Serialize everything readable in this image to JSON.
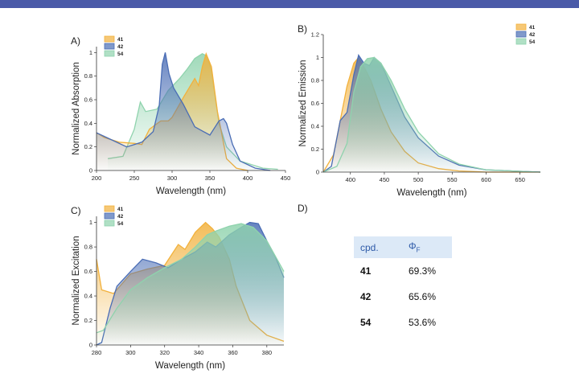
{
  "colors": {
    "41": "#f2b13c",
    "42": "#4a6db5",
    "54": "#8fd3ad",
    "bar": "#4a5aa8"
  },
  "chart_data": [
    {
      "panel": "A)",
      "type": "area",
      "title": "",
      "xlabel": "Wavelength (nm)",
      "ylabel": "Normalized Absorption",
      "xlim": [
        200,
        450
      ],
      "ylim": [
        0,
        1.05
      ],
      "xticks": [
        200,
        250,
        300,
        350,
        400,
        450
      ],
      "yticks": [
        0.0,
        0.2,
        0.4,
        0.6,
        0.8,
        1.0
      ],
      "legend_position": "top-left",
      "series": [
        {
          "name": "54",
          "x": [
            215,
            235,
            250,
            258,
            265,
            280,
            295,
            310,
            320,
            330,
            340,
            346,
            352,
            362,
            372,
            390,
            420,
            440
          ],
          "y": [
            0.1,
            0.12,
            0.35,
            0.58,
            0.5,
            0.52,
            0.68,
            0.78,
            0.86,
            0.95,
            0.99,
            0.97,
            0.85,
            0.4,
            0.2,
            0.08,
            0.02,
            0.01
          ]
        },
        {
          "name": "41",
          "x": [
            200,
            210,
            230,
            250,
            260,
            270,
            285,
            295,
            300,
            315,
            330,
            335,
            340,
            345,
            352,
            360,
            372,
            385,
            400
          ],
          "y": [
            0.32,
            0.28,
            0.24,
            0.23,
            0.22,
            0.35,
            0.42,
            0.42,
            0.45,
            0.62,
            0.78,
            0.72,
            0.88,
            0.99,
            0.88,
            0.5,
            0.1,
            0.02,
            0.0
          ]
        },
        {
          "name": "42",
          "x": [
            200,
            220,
            240,
            260,
            275,
            283,
            287,
            291,
            296,
            302,
            315,
            330,
            350,
            358,
            362,
            368,
            372,
            380,
            390,
            410,
            430
          ],
          "y": [
            0.32,
            0.26,
            0.2,
            0.24,
            0.33,
            0.55,
            0.9,
            1.0,
            0.82,
            0.7,
            0.56,
            0.37,
            0.3,
            0.38,
            0.42,
            0.44,
            0.4,
            0.22,
            0.08,
            0.02,
            0.0
          ]
        }
      ]
    },
    {
      "panel": "B)",
      "type": "area",
      "title": "",
      "xlabel": "Wavelength (nm)",
      "ylabel": "Normalized Emission",
      "xlim": [
        360,
        680
      ],
      "ylim": [
        0,
        1.2
      ],
      "xticks": [
        400,
        450,
        500,
        550,
        600,
        650
      ],
      "yticks": [
        0.0,
        0.2,
        0.4,
        0.6,
        0.8,
        1.0,
        1.2
      ],
      "legend_position": "top-right",
      "series": [
        {
          "name": "41",
          "x": [
            360,
            375,
            385,
            395,
            405,
            412,
            420,
            430,
            445,
            460,
            480,
            500,
            530,
            560,
            600,
            680
          ],
          "y": [
            0.0,
            0.15,
            0.45,
            0.75,
            0.95,
            1.0,
            0.92,
            0.8,
            0.55,
            0.35,
            0.18,
            0.08,
            0.03,
            0.01,
            0.0,
            0.0
          ]
        },
        {
          "name": "42",
          "x": [
            360,
            372,
            385,
            395,
            405,
            412,
            420,
            428,
            435,
            445,
            460,
            480,
            500,
            530,
            560,
            600,
            680
          ],
          "y": [
            0.0,
            0.05,
            0.45,
            0.52,
            0.85,
            1.02,
            0.95,
            0.93,
            1.0,
            0.95,
            0.75,
            0.48,
            0.3,
            0.14,
            0.06,
            0.02,
            0.0
          ]
        },
        {
          "name": "54",
          "x": [
            360,
            380,
            395,
            405,
            415,
            425,
            435,
            445,
            460,
            480,
            500,
            530,
            560,
            600,
            680
          ],
          "y": [
            0.0,
            0.05,
            0.25,
            0.7,
            0.92,
            0.99,
            1.0,
            0.95,
            0.8,
            0.55,
            0.35,
            0.16,
            0.07,
            0.02,
            0.0
          ]
        }
      ]
    },
    {
      "panel": "C)",
      "type": "area",
      "title": "",
      "xlabel": "Wavelength (nm)",
      "ylabel": "Normalized Excitation",
      "xlim": [
        280,
        390
      ],
      "ylim": [
        0,
        1.05
      ],
      "xticks": [
        280,
        300,
        320,
        340,
        360,
        380
      ],
      "yticks": [
        0.0,
        0.2,
        0.4,
        0.6,
        0.8,
        1.0
      ],
      "legend_position": "top-left",
      "series": [
        {
          "name": "41",
          "x": [
            280,
            283,
            290,
            300,
            310,
            320,
            328,
            332,
            338,
            344,
            348,
            352,
            358,
            362,
            370,
            380,
            390
          ],
          "y": [
            0.7,
            0.45,
            0.42,
            0.58,
            0.62,
            0.65,
            0.82,
            0.78,
            0.92,
            1.0,
            0.95,
            0.88,
            0.7,
            0.48,
            0.2,
            0.08,
            0.03
          ]
        },
        {
          "name": "42",
          "x": [
            280,
            283,
            288,
            292,
            300,
            307,
            315,
            322,
            330,
            338,
            345,
            350,
            358,
            365,
            370,
            375,
            380,
            385,
            390
          ],
          "y": [
            0.0,
            0.02,
            0.3,
            0.48,
            0.6,
            0.7,
            0.67,
            0.63,
            0.7,
            0.76,
            0.84,
            0.8,
            0.9,
            0.96,
            1.0,
            0.99,
            0.85,
            0.72,
            0.55
          ]
        },
        {
          "name": "54",
          "x": [
            280,
            284,
            292,
            300,
            310,
            320,
            330,
            338,
            345,
            350,
            358,
            365,
            372,
            380,
            390
          ],
          "y": [
            0.1,
            0.12,
            0.3,
            0.45,
            0.55,
            0.63,
            0.7,
            0.8,
            0.9,
            0.93,
            0.97,
            0.99,
            0.96,
            0.85,
            0.6
          ]
        }
      ]
    }
  ],
  "table": {
    "panel": "D)",
    "header": {
      "col1": "cpd.",
      "col2_symbol": "Φ",
      "col2_sub": "F"
    },
    "rows": [
      {
        "cpd": "41",
        "value": "69.3%"
      },
      {
        "cpd": "42",
        "value": "65.6%"
      },
      {
        "cpd": "54",
        "value": "53.6%"
      }
    ]
  }
}
